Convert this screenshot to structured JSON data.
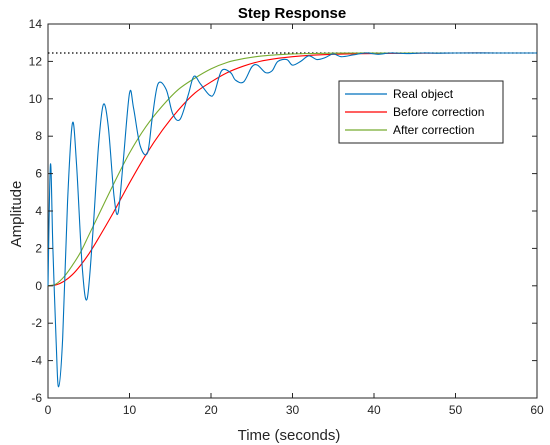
{
  "chart_data": {
    "type": "line",
    "title": "Step Response",
    "xlabel": "Time (seconds)",
    "ylabel": "Amplitude",
    "xlim": [
      0,
      60
    ],
    "ylim": [
      -6,
      14
    ],
    "xticks": [
      0,
      10,
      20,
      30,
      40,
      50,
      60
    ],
    "yticks": [
      -6,
      -4,
      -2,
      0,
      2,
      4,
      6,
      8,
      10,
      12,
      14
    ],
    "grid": false,
    "legend_position": "upper-right",
    "reference_line": {
      "y": 12.45,
      "style": "dotted",
      "color": "#000000"
    },
    "series": [
      {
        "name": "Real object",
        "color": "#0072BD",
        "x": [
          0,
          0.3,
          0.6,
          1.0,
          1.3,
          1.8,
          2.4,
          3.0,
          3.5,
          4.2,
          4.8,
          5.5,
          6.2,
          6.8,
          7.4,
          8.1,
          8.6,
          9.2,
          10.0,
          10.5,
          11.3,
          12.2,
          12.8,
          13.5,
          14.5,
          15.3,
          16.2,
          17.2,
          17.9,
          18.7,
          19.8,
          20.4,
          21.3,
          22.4,
          23.0,
          24.0,
          25.0,
          25.7,
          26.7,
          27.5,
          28.2,
          29.3,
          30.0,
          31.0,
          32.0,
          33.0,
          34.0,
          35.0,
          36.0,
          37.5,
          39.0,
          40.5,
          42.0,
          44.0,
          46.0,
          48.0,
          50.0,
          55.0,
          60.0
        ],
        "values": [
          0,
          6.5,
          2.0,
          -3.0,
          -5.4,
          -2.8,
          4.5,
          8.7,
          6.5,
          1.0,
          -0.7,
          2.8,
          7.5,
          9.7,
          8.5,
          4.8,
          3.9,
          6.5,
          10.3,
          9.5,
          7.5,
          7.1,
          9.0,
          10.8,
          10.5,
          9.2,
          8.9,
          10.2,
          11.2,
          10.8,
          10.2,
          10.3,
          11.5,
          11.4,
          11.0,
          10.9,
          11.7,
          11.8,
          11.4,
          11.5,
          12.0,
          12.1,
          11.8,
          12.0,
          12.3,
          12.1,
          12.2,
          12.4,
          12.25,
          12.35,
          12.45,
          12.38,
          12.45,
          12.42,
          12.45,
          12.44,
          12.45,
          12.45,
          12.45
        ]
      },
      {
        "name": "Before correction",
        "color": "#FF0000",
        "x": [
          0,
          1,
          2,
          3,
          4,
          5,
          6,
          8,
          10,
          12,
          14,
          16,
          18,
          20,
          22,
          24,
          26,
          28,
          30,
          32,
          35,
          38,
          40,
          45,
          50,
          55,
          60
        ],
        "values": [
          0,
          0.05,
          0.25,
          0.6,
          1.1,
          1.7,
          2.4,
          3.9,
          5.5,
          7.0,
          8.3,
          9.4,
          10.3,
          10.9,
          11.4,
          11.75,
          12.0,
          12.15,
          12.25,
          12.32,
          12.38,
          12.41,
          12.42,
          12.44,
          12.45,
          12.45,
          12.45
        ]
      },
      {
        "name": "After correction",
        "color": "#77AC30",
        "x": [
          0,
          1,
          2,
          3,
          4,
          5,
          6,
          8,
          10,
          12,
          14,
          16,
          18,
          20,
          22,
          24,
          26,
          28,
          30,
          32,
          35,
          38,
          40,
          45,
          50,
          55,
          60
        ],
        "values": [
          0,
          0.1,
          0.5,
          1.1,
          1.8,
          2.7,
          3.6,
          5.4,
          7.1,
          8.5,
          9.6,
          10.5,
          11.1,
          11.6,
          11.95,
          12.15,
          12.28,
          12.35,
          12.4,
          12.42,
          12.44,
          12.45,
          12.45,
          12.45,
          12.45,
          12.45,
          12.45
        ]
      }
    ]
  }
}
